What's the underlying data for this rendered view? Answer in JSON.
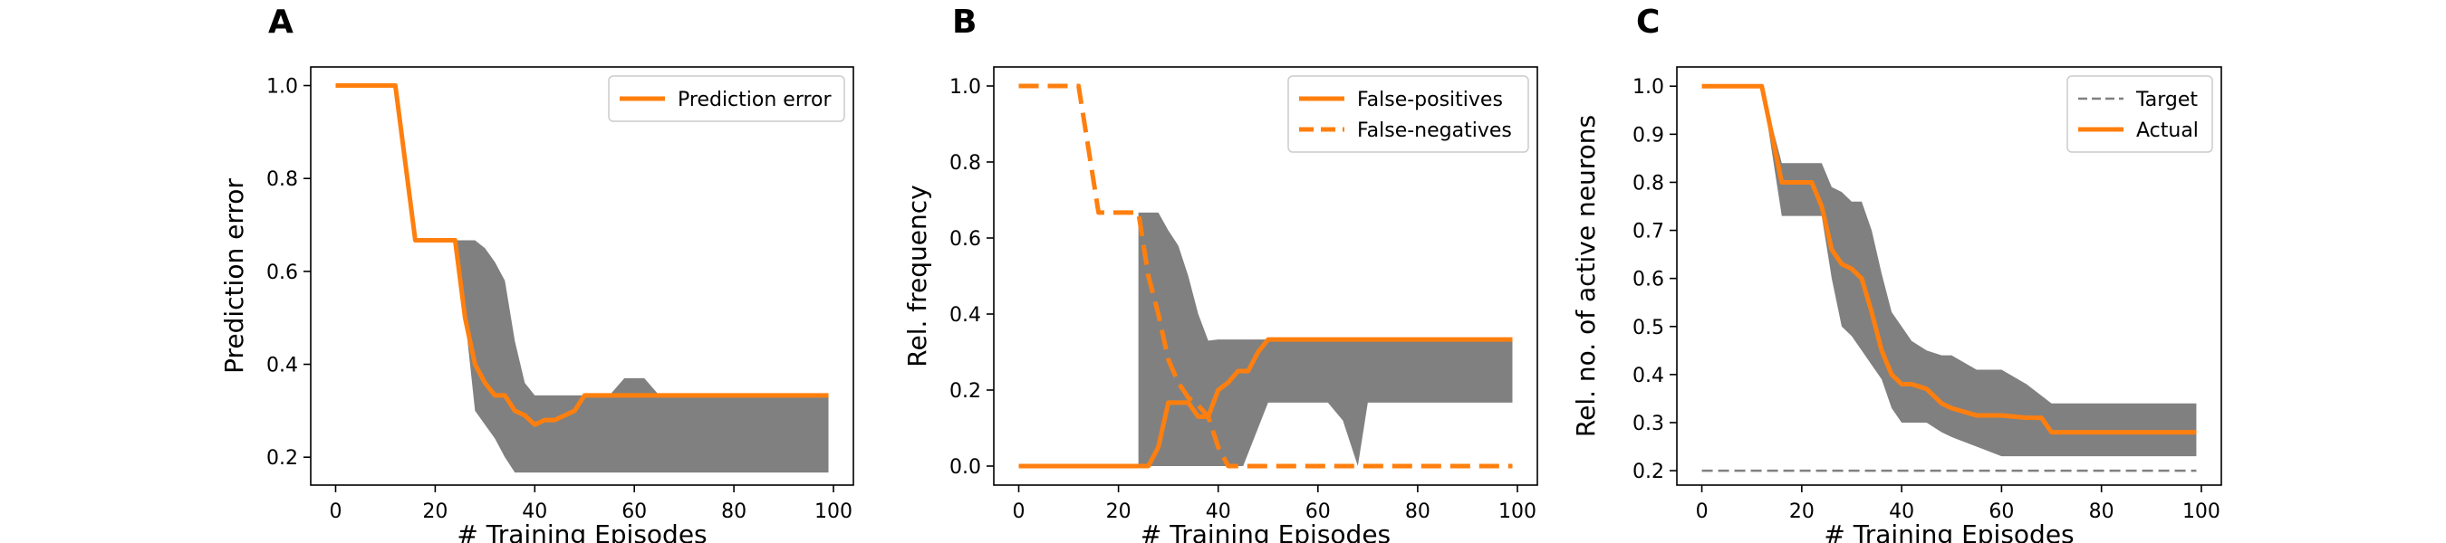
{
  "chart_data": [
    {
      "panel": "A",
      "type": "line",
      "xlabel": "# Training Episodes",
      "ylabel": "Prediction error",
      "xlim": [
        -5,
        104
      ],
      "ylim": [
        0.14,
        1.04
      ],
      "xticks": [
        0,
        20,
        40,
        60,
        80,
        100
      ],
      "yticks": [
        0.2,
        0.4,
        0.6,
        0.8,
        1.0
      ],
      "ytick_labels": [
        "0.2",
        "0.4",
        "0.6",
        "0.8",
        "1.0"
      ],
      "legend_position": "top-right",
      "band": {
        "color": "#808080",
        "x": [
          24,
          26,
          28,
          30,
          32,
          34,
          36,
          38,
          40,
          45,
          50,
          55,
          58,
          62,
          65,
          70,
          80,
          90,
          99
        ],
        "upper": [
          0.667,
          0.667,
          0.667,
          0.65,
          0.62,
          0.58,
          0.45,
          0.36,
          0.333,
          0.333,
          0.333,
          0.333,
          0.37,
          0.37,
          0.333,
          0.333,
          0.333,
          0.333,
          0.333
        ],
        "lower": [
          0.667,
          0.5,
          0.3,
          0.27,
          0.24,
          0.2,
          0.167,
          0.167,
          0.167,
          0.167,
          0.167,
          0.167,
          0.167,
          0.167,
          0.167,
          0.167,
          0.167,
          0.167,
          0.167
        ]
      },
      "series": [
        {
          "name": "Prediction error",
          "color": "#ff7f0e",
          "dash": "solid",
          "x": [
            0,
            12,
            16,
            24,
            26,
            28,
            30,
            32,
            34,
            36,
            38,
            40,
            42,
            44,
            46,
            48,
            50,
            55,
            60,
            65,
            70,
            80,
            90,
            99
          ],
          "values": [
            1.0,
            1.0,
            0.667,
            0.667,
            0.5,
            0.4,
            0.36,
            0.333,
            0.333,
            0.3,
            0.29,
            0.27,
            0.28,
            0.28,
            0.29,
            0.3,
            0.333,
            0.333,
            0.333,
            0.333,
            0.333,
            0.333,
            0.333,
            0.333
          ]
        }
      ]
    },
    {
      "panel": "B",
      "type": "line",
      "xlabel": "# Training Episodes",
      "ylabel": "Rel. frequency",
      "xlim": [
        -5,
        104
      ],
      "ylim": [
        -0.05,
        1.05
      ],
      "xticks": [
        0,
        20,
        40,
        60,
        80,
        100
      ],
      "yticks": [
        0.0,
        0.2,
        0.4,
        0.6,
        0.8,
        1.0
      ],
      "ytick_labels": [
        "0.0",
        "0.2",
        "0.4",
        "0.6",
        "0.8",
        "1.0"
      ],
      "legend_position": "top-right",
      "band": {
        "color": "#808080",
        "x": [
          24,
          28,
          30,
          32,
          34,
          36,
          38,
          40,
          42,
          45,
          50,
          55,
          60,
          62,
          65,
          68,
          70,
          80,
          90,
          99
        ],
        "upper": [
          0.667,
          0.667,
          0.62,
          0.58,
          0.5,
          0.4,
          0.33,
          0.333,
          0.333,
          0.333,
          0.333,
          0.333,
          0.333,
          0.333,
          0.333,
          0.333,
          0.333,
          0.333,
          0.333,
          0.333
        ],
        "lower": [
          0.0,
          0.0,
          0.0,
          0.0,
          0.0,
          0.0,
          0.0,
          0.0,
          0.0,
          0.0,
          0.167,
          0.167,
          0.167,
          0.167,
          0.12,
          0.0,
          0.167,
          0.167,
          0.167,
          0.167
        ]
      },
      "series": [
        {
          "name": "False-positives",
          "color": "#ff7f0e",
          "dash": "solid",
          "x": [
            0,
            10,
            20,
            26,
            28,
            30,
            32,
            34,
            36,
            38,
            40,
            42,
            44,
            46,
            48,
            50,
            60,
            70,
            80,
            90,
            99
          ],
          "values": [
            0.0,
            0.0,
            0.0,
            0.0,
            0.05,
            0.167,
            0.167,
            0.167,
            0.13,
            0.13,
            0.2,
            0.22,
            0.25,
            0.25,
            0.3,
            0.333,
            0.333,
            0.333,
            0.333,
            0.333,
            0.333
          ]
        },
        {
          "name": "False-negatives",
          "color": "#ff7f0e",
          "dash": "dashed",
          "x": [
            0,
            12,
            16,
            24,
            26,
            28,
            30,
            32,
            34,
            36,
            38,
            40,
            42,
            44,
            50,
            60,
            70,
            80,
            90,
            99
          ],
          "values": [
            1.0,
            1.0,
            0.667,
            0.667,
            0.5,
            0.4,
            0.28,
            0.22,
            0.18,
            0.16,
            0.13,
            0.05,
            0.0,
            0.0,
            0.0,
            0.0,
            0.0,
            0.0,
            0.0,
            0.0
          ]
        }
      ]
    },
    {
      "panel": "C",
      "type": "line",
      "xlabel": "# Training Episodes",
      "ylabel": "Rel. no. of active neurons",
      "xlim": [
        -5,
        104
      ],
      "ylim": [
        0.17,
        1.04
      ],
      "xticks": [
        0,
        20,
        40,
        60,
        80,
        100
      ],
      "yticks": [
        0.2,
        0.3,
        0.4,
        0.5,
        0.6,
        0.7,
        0.8,
        0.9,
        1.0
      ],
      "ytick_labels": [
        "0.2",
        "0.3",
        "0.4",
        "0.5",
        "0.6",
        "0.7",
        "0.8",
        "0.9",
        "1.0"
      ],
      "legend_position": "top-right",
      "band": {
        "color": "#808080",
        "x": [
          12,
          16,
          20,
          24,
          26,
          28,
          30,
          32,
          34,
          36,
          38,
          40,
          42,
          45,
          48,
          50,
          55,
          60,
          65,
          70,
          80,
          90,
          99
        ],
        "upper": [
          1.0,
          0.84,
          0.84,
          0.84,
          0.79,
          0.78,
          0.76,
          0.76,
          0.7,
          0.61,
          0.53,
          0.5,
          0.47,
          0.45,
          0.44,
          0.44,
          0.41,
          0.41,
          0.38,
          0.34,
          0.34,
          0.34,
          0.34
        ],
        "lower": [
          1.0,
          0.73,
          0.73,
          0.73,
          0.6,
          0.5,
          0.48,
          0.45,
          0.42,
          0.39,
          0.33,
          0.3,
          0.3,
          0.3,
          0.28,
          0.27,
          0.25,
          0.23,
          0.23,
          0.23,
          0.23,
          0.23,
          0.23
        ]
      },
      "series": [
        {
          "name": "Target",
          "color": "#808080",
          "dash": "dashed",
          "x": [
            0,
            99
          ],
          "values": [
            0.2,
            0.2
          ]
        },
        {
          "name": "Actual",
          "color": "#ff7f0e",
          "dash": "solid",
          "x": [
            0,
            12,
            16,
            22,
            24,
            26,
            28,
            30,
            32,
            34,
            36,
            38,
            40,
            42,
            45,
            48,
            50,
            55,
            60,
            65,
            68,
            70,
            80,
            90,
            99
          ],
          "values": [
            1.0,
            1.0,
            0.8,
            0.8,
            0.75,
            0.66,
            0.63,
            0.62,
            0.6,
            0.53,
            0.45,
            0.4,
            0.38,
            0.38,
            0.37,
            0.34,
            0.33,
            0.315,
            0.315,
            0.31,
            0.31,
            0.28,
            0.28,
            0.28,
            0.28
          ]
        }
      ]
    }
  ]
}
